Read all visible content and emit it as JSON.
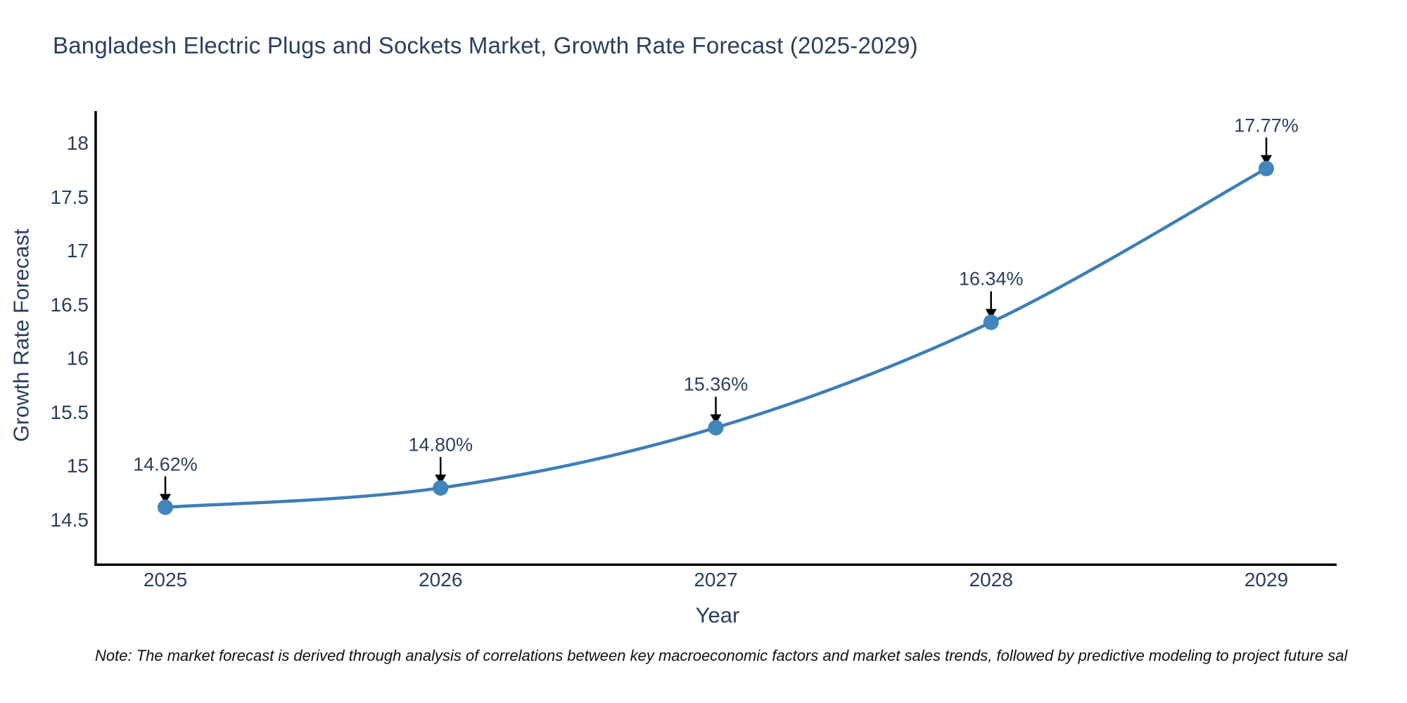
{
  "note": "Note: The market forecast is derived through analysis of correlations between key macroeconomic factors and market sales trends, followed by predictive modeling to project future sal",
  "colors": {
    "line": "#3e7eb9",
    "marker": "#4285bd",
    "axis": "#000000",
    "text": "#2a3f5f",
    "arrow": "#000000",
    "note_text": "#111111",
    "background": "#ffffff"
  },
  "chart_data": {
    "type": "line",
    "title": "Bangladesh Electric Plugs and Sockets Market, Growth Rate Forecast (2025-2029)",
    "xlabel": "Year",
    "ylabel": "Growth Rate Forecast",
    "x": [
      2025,
      2026,
      2027,
      2028,
      2029
    ],
    "values": [
      14.62,
      14.8,
      15.36,
      16.34,
      17.77
    ],
    "data_labels": [
      "14.62%",
      "14.80%",
      "15.36%",
      "16.34%",
      "17.77%"
    ],
    "series_name": "Growth Rate Forecast",
    "line_shape": "spline",
    "markers": true,
    "y_ticks": [
      14.5,
      15,
      15.5,
      16,
      16.5,
      17,
      17.5,
      18
    ],
    "y_tick_labels": [
      "14.5",
      "15",
      "15.5",
      "16",
      "16.5",
      "17",
      "17.5",
      "18"
    ],
    "ylim": [
      14.08,
      18.3
    ],
    "grid": false,
    "legend": "none",
    "annotations_have_arrows": true
  }
}
